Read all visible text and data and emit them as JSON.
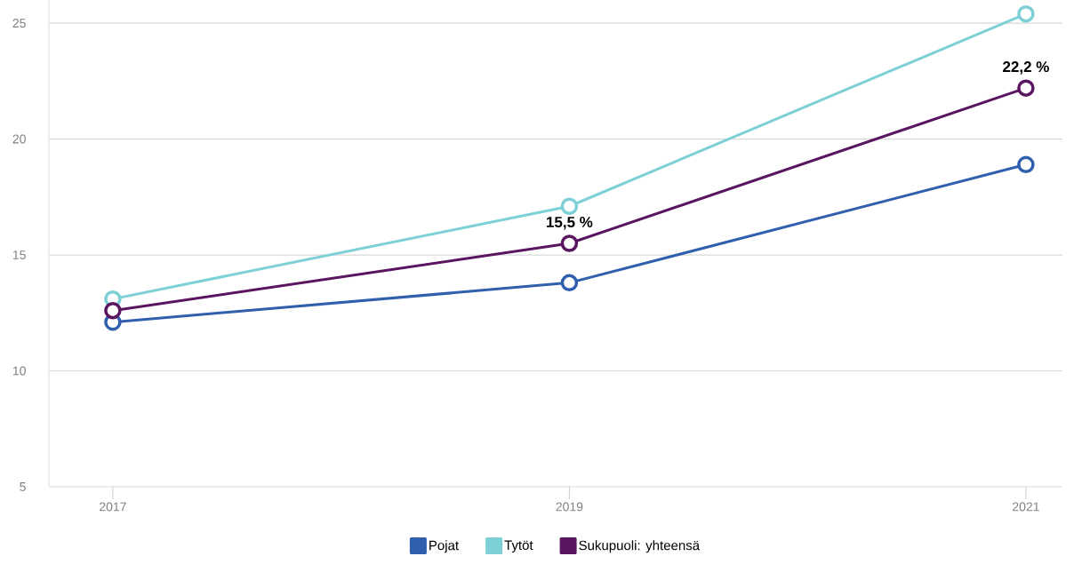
{
  "chart_data": {
    "type": "line",
    "categories": [
      "2017",
      "2019",
      "2021"
    ],
    "series": [
      {
        "name": "Pojat",
        "color": "#2f5fad",
        "values": [
          12.1,
          13.8,
          18.9
        ]
      },
      {
        "name": "Tytöt",
        "color": "#7dd0d6",
        "values": [
          13.1,
          17.1,
          25.4
        ]
      },
      {
        "name": "Sukupuoli: yhteensä",
        "color": "#5a1560",
        "values": [
          12.6,
          15.5,
          22.2
        ],
        "value_labels": [
          null,
          "15,5 %",
          "22,2 %"
        ]
      }
    ],
    "ylim": [
      5,
      26
    ],
    "yticks": [
      5,
      10,
      15,
      20,
      25
    ],
    "grid": "y",
    "legend": "bottom",
    "marker": "circle",
    "line_style": "solid"
  }
}
